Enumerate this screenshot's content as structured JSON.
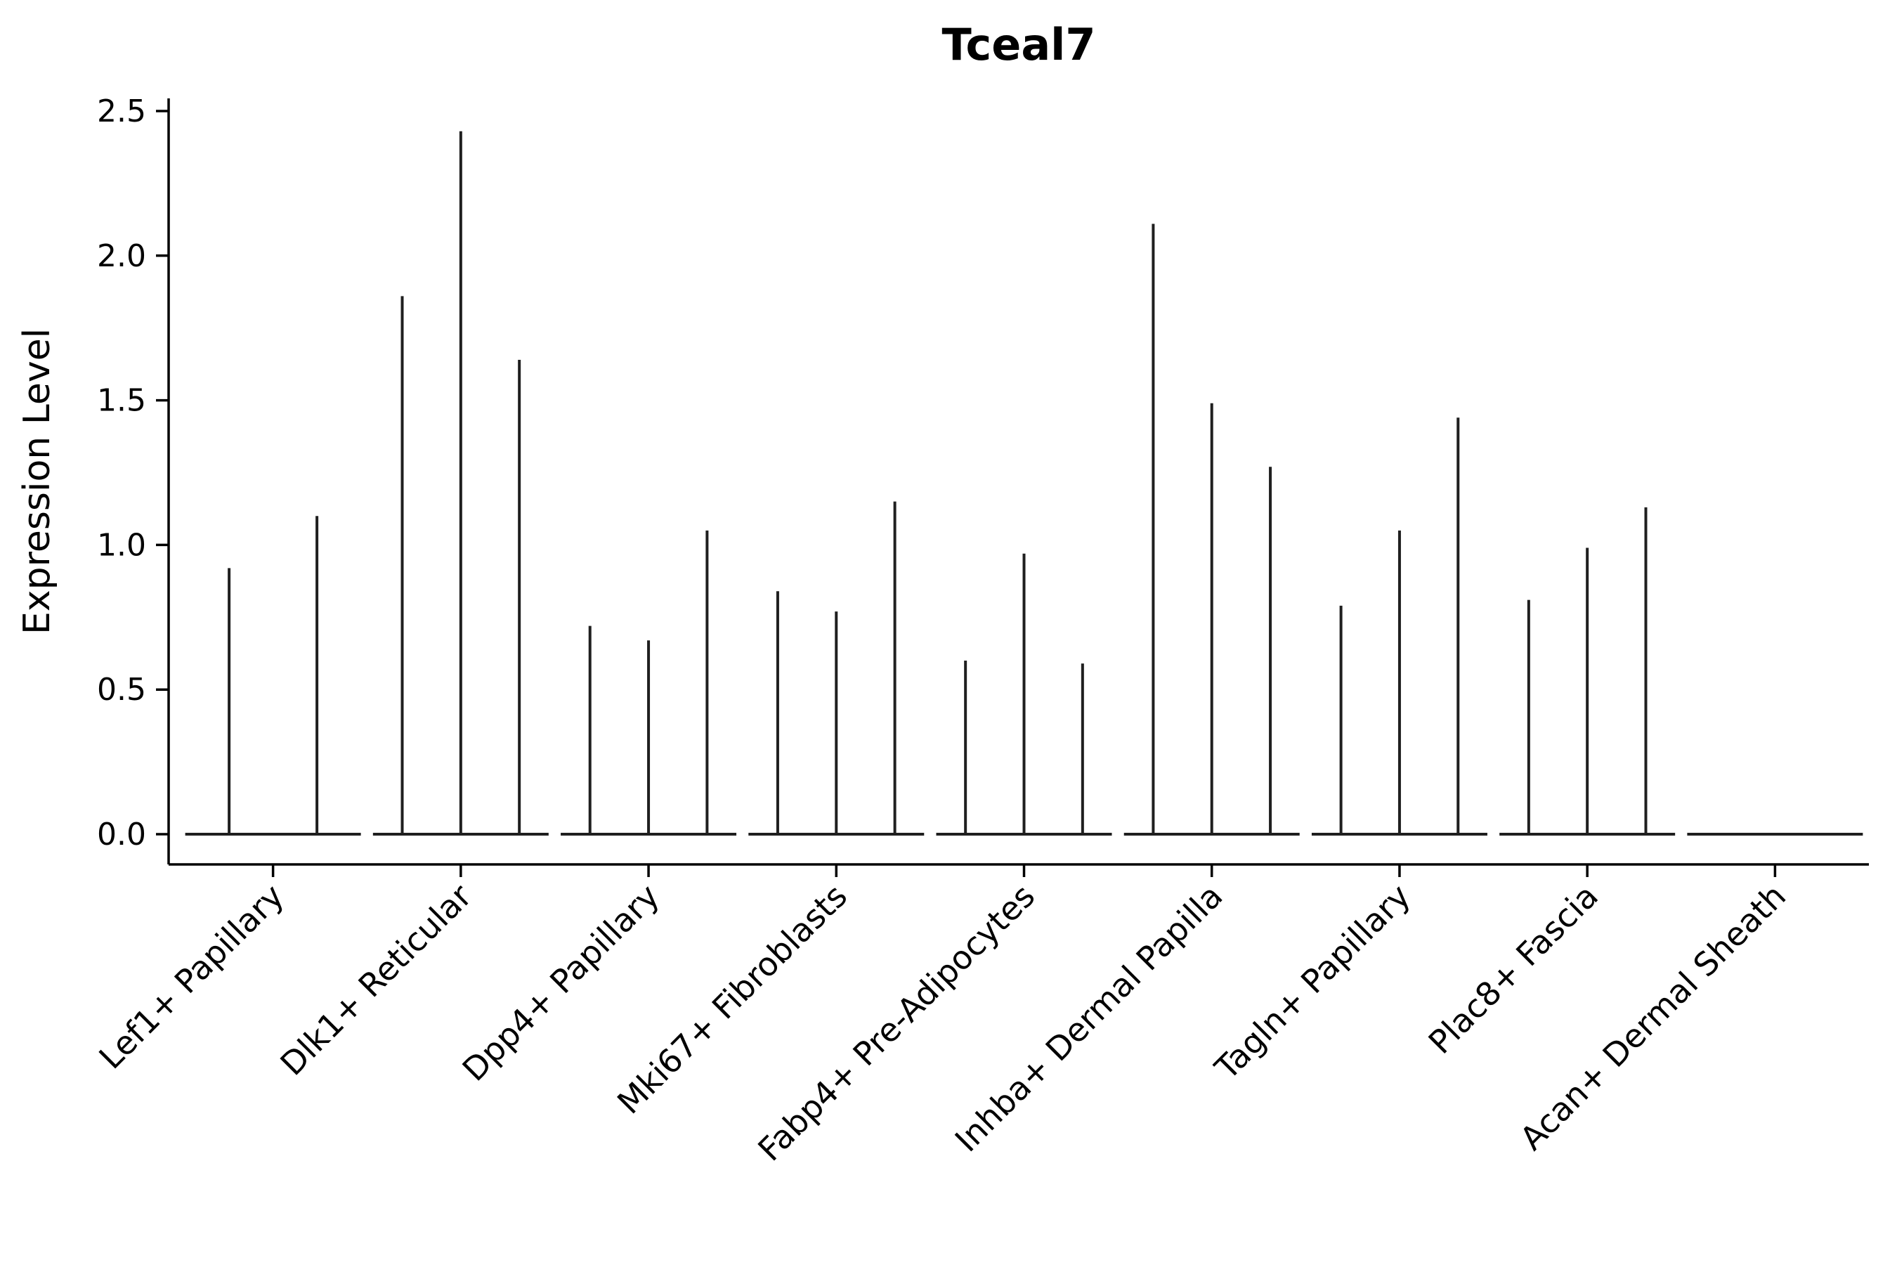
{
  "chart_data": {
    "type": "violin",
    "title": "Tceal7",
    "ylabel": "Expression Level",
    "xlabel": "",
    "ylim": [
      0,
      2.5
    ],
    "yticks": [
      0.0,
      0.5,
      1.0,
      1.5,
      2.0,
      2.5
    ],
    "ytick_labels": [
      "0.0",
      "0.5",
      "1.0",
      "1.5",
      "2.0",
      "2.5"
    ],
    "categories": [
      "Lef1+ Papillary",
      "Dlk1+ Reticular",
      "Dpp4+ Papillary",
      "Mki67+ Fibroblasts",
      "Fabp4+ Pre-Adipocytes",
      "Inhba+ Dermal Papilla",
      "Tagln+ Papillary",
      "Plac8+ Fascia",
      "Acan+ Dermal Sheath"
    ],
    "groups": [
      {
        "label": "Lef1+ Papillary",
        "spike_maxima": [
          0.92,
          1.1
        ]
      },
      {
        "label": "Dlk1+ Reticular",
        "spike_maxima": [
          1.86,
          2.43,
          1.64
        ]
      },
      {
        "label": "Dpp4+ Papillary",
        "spike_maxima": [
          0.72,
          0.67,
          1.05
        ]
      },
      {
        "label": "Mki67+ Fibroblasts",
        "spike_maxima": [
          0.84,
          0.77,
          1.15
        ]
      },
      {
        "label": "Fabp4+ Pre-Adipocytes",
        "spike_maxima": [
          0.6,
          0.97,
          0.59
        ]
      },
      {
        "label": "Inhba+ Dermal Papilla",
        "spike_maxima": [
          2.11,
          1.49,
          1.27
        ]
      },
      {
        "label": "Tagln+ Papillary",
        "spike_maxima": [
          0.79,
          1.05,
          1.44
        ]
      },
      {
        "label": "Plac8+ Fascia",
        "spike_maxima": [
          0.81,
          0.99,
          1.13
        ]
      },
      {
        "label": "Acan+ Dermal Sheath",
        "spike_maxima": []
      }
    ],
    "legend": "none",
    "grid": false,
    "colors": {
      "violin_line": "#1f1f1f",
      "axis": "#000000",
      "background": "#ffffff",
      "text": "#000000"
    }
  }
}
